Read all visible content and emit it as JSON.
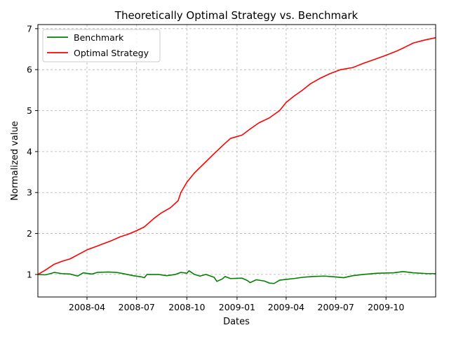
{
  "chart_data": {
    "type": "line",
    "title": "Theoretically Optimal Strategy vs. Benchmark",
    "xlabel": "Dates",
    "ylabel": "Normalized value",
    "x_tick_labels": [
      "2008-04",
      "2008-07",
      "2008-10",
      "2009-01",
      "2009-04",
      "2009-07",
      "2009-10"
    ],
    "x_tick_dates": [
      "2008-04-01",
      "2008-07-01",
      "2008-10-01",
      "2009-01-01",
      "2009-04-01",
      "2009-07-01",
      "2009-10-01"
    ],
    "x_range": [
      "2008-01-02",
      "2009-12-31"
    ],
    "y_tick_labels": [
      "1",
      "2",
      "3",
      "4",
      "5",
      "6",
      "7"
    ],
    "y_ticks": [
      1,
      2,
      3,
      4,
      5,
      6,
      7
    ],
    "ylim": [
      0.45,
      7.1
    ],
    "grid": true,
    "legend_position": "top-left",
    "series": [
      {
        "name": "Benchmark",
        "color": "#008000",
        "points": [
          [
            "2008-01-02",
            1.0
          ],
          [
            "2008-01-15",
            0.99
          ],
          [
            "2008-01-25",
            1.02
          ],
          [
            "2008-02-01",
            1.05
          ],
          [
            "2008-02-15",
            1.02
          ],
          [
            "2008-03-01",
            1.01
          ],
          [
            "2008-03-15",
            0.96
          ],
          [
            "2008-03-25",
            1.04
          ],
          [
            "2008-04-10",
            1.01
          ],
          [
            "2008-04-20",
            1.05
          ],
          [
            "2008-05-10",
            1.06
          ],
          [
            "2008-05-25",
            1.05
          ],
          [
            "2008-06-10",
            1.01
          ],
          [
            "2008-06-25",
            0.97
          ],
          [
            "2008-07-10",
            0.94
          ],
          [
            "2008-07-15",
            0.92
          ],
          [
            "2008-07-20",
            1.0
          ],
          [
            "2008-08-10",
            1.0
          ],
          [
            "2008-08-25",
            0.97
          ],
          [
            "2008-09-10",
            1.0
          ],
          [
            "2008-09-20",
            1.05
          ],
          [
            "2008-10-01",
            1.03
          ],
          [
            "2008-10-05",
            1.09
          ],
          [
            "2008-10-15",
            1.0
          ],
          [
            "2008-10-25",
            0.96
          ],
          [
            "2008-11-05",
            1.0
          ],
          [
            "2008-11-20",
            0.93
          ],
          [
            "2008-11-25",
            0.83
          ],
          [
            "2008-12-05",
            0.89
          ],
          [
            "2008-12-10",
            0.95
          ],
          [
            "2008-12-20",
            0.9
          ],
          [
            "2009-01-10",
            0.91
          ],
          [
            "2009-01-20",
            0.85
          ],
          [
            "2009-01-25",
            0.8
          ],
          [
            "2009-02-05",
            0.87
          ],
          [
            "2009-02-20",
            0.84
          ],
          [
            "2009-03-01",
            0.79
          ],
          [
            "2009-03-10",
            0.78
          ],
          [
            "2009-03-20",
            0.86
          ],
          [
            "2009-04-01",
            0.88
          ],
          [
            "2009-04-15",
            0.9
          ],
          [
            "2009-05-01",
            0.93
          ],
          [
            "2009-05-20",
            0.95
          ],
          [
            "2009-06-10",
            0.96
          ],
          [
            "2009-07-01",
            0.94
          ],
          [
            "2009-07-15",
            0.92
          ],
          [
            "2009-08-01",
            0.97
          ],
          [
            "2009-08-20",
            1.0
          ],
          [
            "2009-09-15",
            1.03
          ],
          [
            "2009-10-15",
            1.04
          ],
          [
            "2009-11-01",
            1.07
          ],
          [
            "2009-11-20",
            1.04
          ],
          [
            "2009-12-15",
            1.02
          ],
          [
            "2009-12-31",
            1.02
          ]
        ]
      },
      {
        "name": "Optimal Strategy",
        "color": "#ff0000",
        "points": [
          [
            "2008-01-02",
            1.0
          ],
          [
            "2008-01-15",
            1.1
          ],
          [
            "2008-02-01",
            1.25
          ],
          [
            "2008-02-15",
            1.32
          ],
          [
            "2008-03-01",
            1.38
          ],
          [
            "2008-03-15",
            1.48
          ],
          [
            "2008-04-01",
            1.6
          ],
          [
            "2008-04-15",
            1.67
          ],
          [
            "2008-05-01",
            1.75
          ],
          [
            "2008-05-15",
            1.82
          ],
          [
            "2008-06-01",
            1.92
          ],
          [
            "2008-06-15",
            1.98
          ],
          [
            "2008-07-01",
            2.07
          ],
          [
            "2008-07-15",
            2.16
          ],
          [
            "2008-08-01",
            2.36
          ],
          [
            "2008-08-15",
            2.5
          ],
          [
            "2008-09-01",
            2.63
          ],
          [
            "2008-09-15",
            2.8
          ],
          [
            "2008-09-20",
            3.0
          ],
          [
            "2008-10-01",
            3.25
          ],
          [
            "2008-10-15",
            3.48
          ],
          [
            "2008-11-01",
            3.7
          ],
          [
            "2008-11-20",
            3.95
          ],
          [
            "2008-12-10",
            4.2
          ],
          [
            "2008-12-20",
            4.32
          ],
          [
            "2009-01-10",
            4.4
          ],
          [
            "2009-01-25",
            4.55
          ],
          [
            "2009-02-10",
            4.7
          ],
          [
            "2009-03-01",
            4.82
          ],
          [
            "2009-03-20",
            5.0
          ],
          [
            "2009-04-01",
            5.2
          ],
          [
            "2009-04-15",
            5.35
          ],
          [
            "2009-05-01",
            5.5
          ],
          [
            "2009-05-15",
            5.65
          ],
          [
            "2009-06-01",
            5.78
          ],
          [
            "2009-06-20",
            5.9
          ],
          [
            "2009-07-10",
            6.0
          ],
          [
            "2009-08-01",
            6.05
          ],
          [
            "2009-08-20",
            6.15
          ],
          [
            "2009-09-10",
            6.25
          ],
          [
            "2009-10-01",
            6.35
          ],
          [
            "2009-10-20",
            6.45
          ],
          [
            "2009-11-05",
            6.55
          ],
          [
            "2009-11-20",
            6.65
          ],
          [
            "2009-12-10",
            6.72
          ],
          [
            "2009-12-31",
            6.78
          ]
        ]
      }
    ]
  }
}
